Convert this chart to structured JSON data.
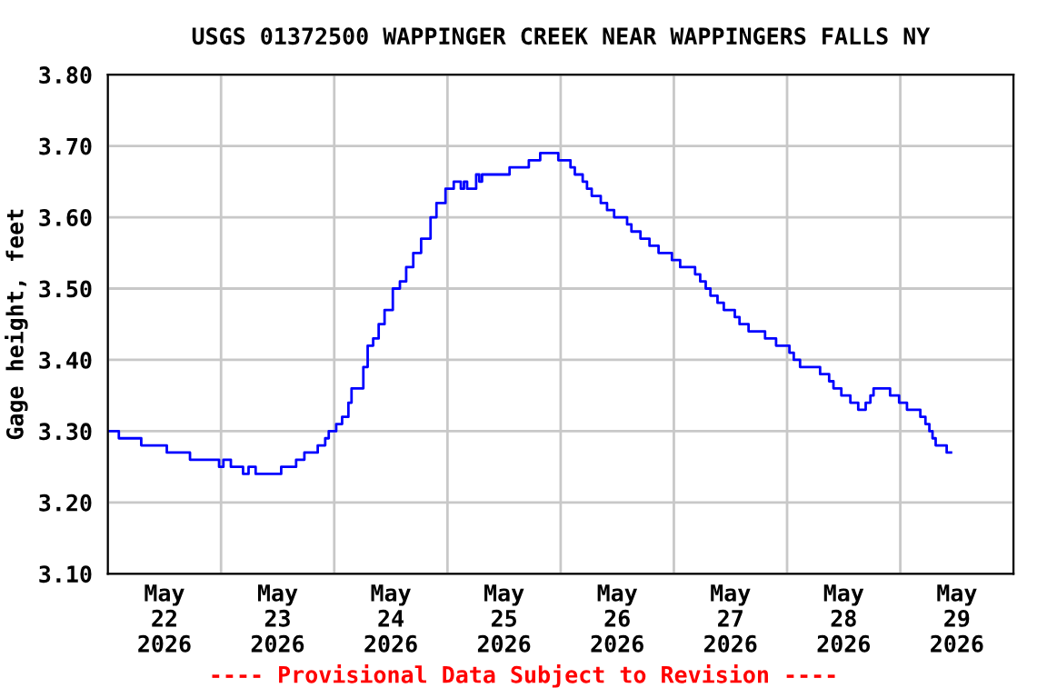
{
  "chart_data": {
    "type": "step",
    "title": "USGS 01372500 WAPPINGER CREEK NEAR WAPPINGERS FALLS NY",
    "ylabel": "Gage height, feet",
    "annotations": [
      "---- Provisional Data Subject to Revision ----"
    ],
    "series": [
      {
        "color": "#0000ff",
        "x": [
          "2026-05-22T00:00",
          "2026-05-22T02:20",
          "2026-05-22T07:05",
          "2026-05-22T12:30",
          "2026-05-22T17:25",
          "2026-05-22T23:35",
          "2026-05-23T00:30",
          "2026-05-23T02:05",
          "2026-05-23T04:40",
          "2026-05-23T05:50",
          "2026-05-23T07:20",
          "2026-05-23T12:45",
          "2026-05-23T15:55",
          "2026-05-23T17:40",
          "2026-05-23T20:30",
          "2026-05-23T22:05",
          "2026-05-23T22:50",
          "2026-05-24T00:25",
          "2026-05-24T01:40",
          "2026-05-24T03:00",
          "2026-05-24T03:40",
          "2026-05-24T05:10",
          "2026-05-24T06:10",
          "2026-05-24T07:05",
          "2026-05-24T08:15",
          "2026-05-24T09:25",
          "2026-05-24T10:40",
          "2026-05-24T12:25",
          "2026-05-24T13:55",
          "2026-05-24T15:15",
          "2026-05-24T16:45",
          "2026-05-24T18:25",
          "2026-05-24T20:25",
          "2026-05-24T21:40",
          "2026-05-24T23:35",
          "2026-05-25T01:20",
          "2026-05-25T02:50",
          "2026-05-25T03:30",
          "2026-05-25T04:10",
          "2026-05-25T06:05",
          "2026-05-25T06:45",
          "2026-05-25T07:20",
          "2026-05-25T13:10",
          "2026-05-25T17:15",
          "2026-05-25T19:40",
          "2026-05-25T23:30",
          "2026-05-26T02:05",
          "2026-05-26T03:00",
          "2026-05-26T04:40",
          "2026-05-26T05:35",
          "2026-05-26T06:35",
          "2026-05-26T08:30",
          "2026-05-26T09:50",
          "2026-05-26T11:20",
          "2026-05-26T14:05",
          "2026-05-26T15:00",
          "2026-05-26T16:55",
          "2026-05-26T18:50",
          "2026-05-26T20:45",
          "2026-05-26T23:35",
          "2026-05-27T01:20",
          "2026-05-27T04:30",
          "2026-05-27T05:35",
          "2026-05-27T06:45",
          "2026-05-27T07:45",
          "2026-05-27T09:15",
          "2026-05-27T10:35",
          "2026-05-27T12:55",
          "2026-05-27T13:55",
          "2026-05-27T15:50",
          "2026-05-27T19:20",
          "2026-05-27T21:40",
          "2026-05-28T00:30",
          "2026-05-28T01:25",
          "2026-05-28T02:45",
          "2026-05-28T07:00",
          "2026-05-28T08:55",
          "2026-05-28T09:50",
          "2026-05-28T11:30",
          "2026-05-28T13:25",
          "2026-05-28T15:05",
          "2026-05-28T16:40",
          "2026-05-28T17:40",
          "2026-05-28T18:20",
          "2026-05-28T21:50",
          "2026-05-28T23:45",
          "2026-05-29T01:25",
          "2026-05-29T04:15",
          "2026-05-29T05:20",
          "2026-05-29T06:10",
          "2026-05-29T06:50",
          "2026-05-29T07:30",
          "2026-05-29T09:50",
          "2026-05-29T10:45"
        ],
        "values": [
          3.3,
          3.3,
          3.29,
          3.28,
          3.27,
          3.26,
          3.25,
          3.26,
          3.25,
          3.24,
          3.25,
          3.24,
          3.25,
          3.26,
          3.27,
          3.28,
          3.29,
          3.3,
          3.31,
          3.32,
          3.34,
          3.36,
          3.36,
          3.39,
          3.42,
          3.43,
          3.45,
          3.47,
          3.5,
          3.51,
          3.53,
          3.55,
          3.57,
          3.6,
          3.62,
          3.64,
          3.65,
          3.64,
          3.65,
          3.64,
          3.66,
          3.65,
          3.66,
          3.67,
          3.68,
          3.69,
          3.68,
          3.67,
          3.66,
          3.65,
          3.64,
          3.63,
          3.62,
          3.61,
          3.6,
          3.59,
          3.58,
          3.57,
          3.56,
          3.55,
          3.54,
          3.53,
          3.52,
          3.51,
          3.5,
          3.49,
          3.48,
          3.47,
          3.46,
          3.45,
          3.44,
          3.43,
          3.42,
          3.41,
          3.4,
          3.39,
          3.38,
          3.37,
          3.36,
          3.35,
          3.34,
          3.33,
          3.34,
          3.35,
          3.36,
          3.35,
          3.34,
          3.33,
          3.32,
          3.31,
          3.3,
          3.29,
          3.28,
          3.27
        ]
      }
    ],
    "xlim": [
      "2026-05-22T00:00",
      "2026-05-30T00:00"
    ],
    "xticks": [
      {
        "value": "2026-05-22T00:00",
        "label": null
      },
      {
        "value": "2026-05-22T12:00",
        "label": "May\n22\n2026"
      },
      {
        "value": "2026-05-23T00:00",
        "label": null
      },
      {
        "value": "2026-05-23T12:00",
        "label": "May\n23\n2026"
      },
      {
        "value": "2026-05-24T00:00",
        "label": null
      },
      {
        "value": "2026-05-24T12:00",
        "label": "May\n24\n2026"
      },
      {
        "value": "2026-05-25T00:00",
        "label": null
      },
      {
        "value": "2026-05-25T12:00",
        "label": "May\n25\n2026"
      },
      {
        "value": "2026-05-26T00:00",
        "label": null
      },
      {
        "value": "2026-05-26T12:00",
        "label": "May\n26\n2026"
      },
      {
        "value": "2026-05-27T00:00",
        "label": null
      },
      {
        "value": "2026-05-27T12:00",
        "label": "May\n27\n2026"
      },
      {
        "value": "2026-05-28T00:00",
        "label": null
      },
      {
        "value": "2026-05-28T12:00",
        "label": "May\n28\n2026"
      },
      {
        "value": "2026-05-29T00:00",
        "label": null
      },
      {
        "value": "2026-05-29T12:00",
        "label": "May\n29\n2026"
      },
      {
        "value": "2026-05-30T00:00",
        "label": null
      }
    ],
    "ylim": [
      3.1,
      3.8
    ],
    "yticks": [
      {
        "value": 3.1,
        "label": "3.10"
      },
      {
        "value": 3.2,
        "label": "3.20"
      },
      {
        "value": 3.3,
        "label": "3.30"
      },
      {
        "value": 3.4,
        "label": "3.40"
      },
      {
        "value": 3.5,
        "label": "3.50"
      },
      {
        "value": 3.6,
        "label": "3.60"
      },
      {
        "value": 3.7,
        "label": "3.70"
      },
      {
        "value": 3.8,
        "label": "3.80"
      }
    ],
    "grid": true
  }
}
